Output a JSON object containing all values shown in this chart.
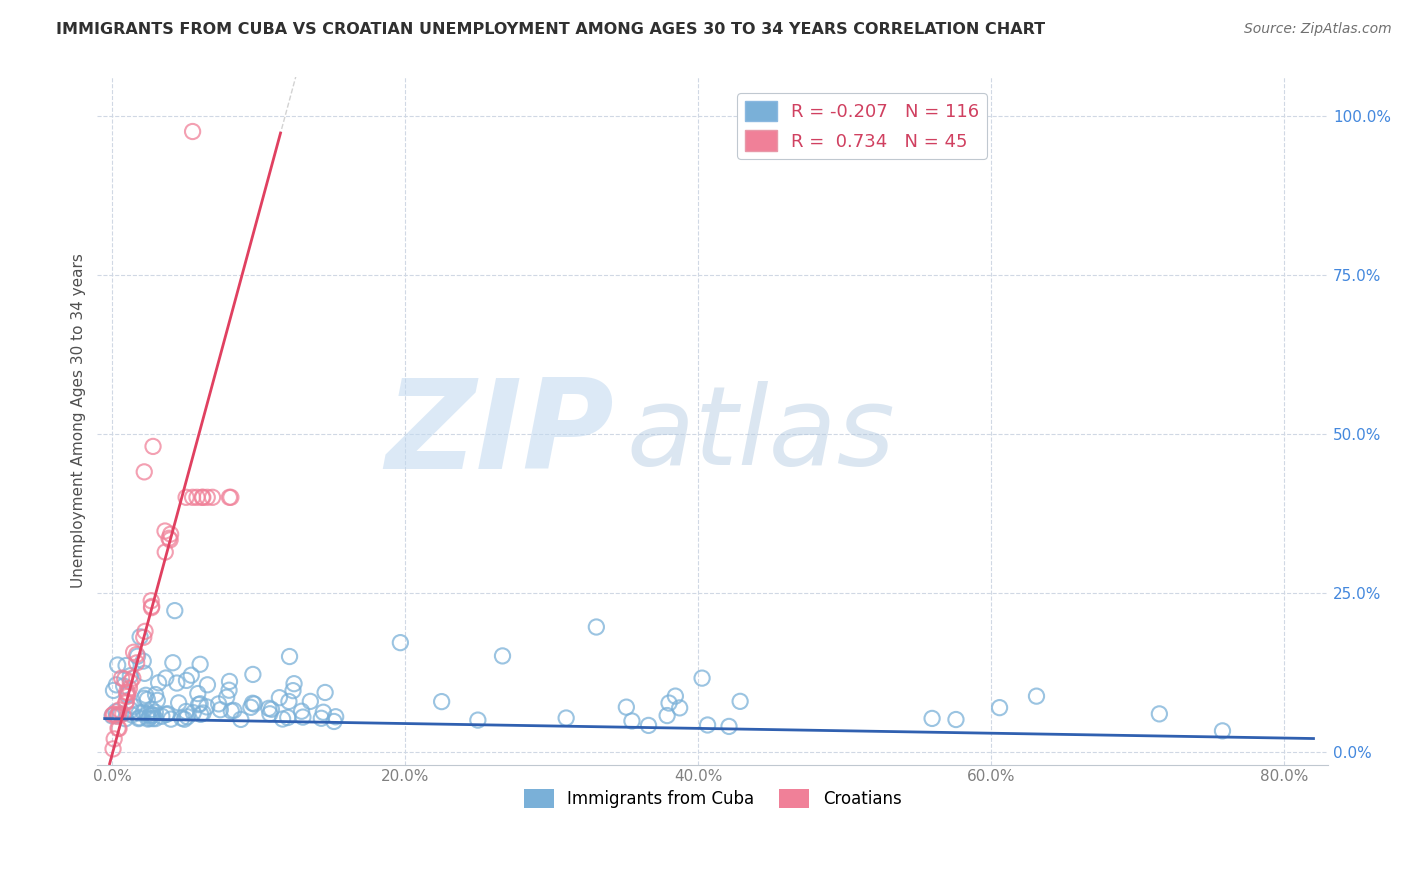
{
  "title": "IMMIGRANTS FROM CUBA VS CROATIAN UNEMPLOYMENT AMONG AGES 30 TO 34 YEARS CORRELATION CHART",
  "source": "Source: ZipAtlas.com",
  "xlabel_ticks": [
    "0.0%",
    "20.0%",
    "40.0%",
    "60.0%",
    "80.0%"
  ],
  "xlabel_vals": [
    0.0,
    0.2,
    0.4,
    0.6,
    0.8
  ],
  "ylabel_ticks": [
    "0.0%",
    "25.0%",
    "50.0%",
    "75.0%",
    "100.0%"
  ],
  "ylabel_vals": [
    0.0,
    0.25,
    0.5,
    0.75,
    1.0
  ],
  "xlim": [
    -0.01,
    0.83
  ],
  "ylim": [
    -0.02,
    1.06
  ],
  "blue_color": "#7ab0d8",
  "pink_color": "#f08098",
  "blue_line_color": "#3060b0",
  "pink_line_color": "#e04060",
  "pink_dash_color": "#e8a0b0",
  "watermark_zip": "ZIP",
  "watermark_atlas": "atlas",
  "watermark_color_zip": "#c0d8f0",
  "watermark_color_atlas": "#b0c8e0",
  "background_color": "#ffffff",
  "grid_color": "#d0d8e4",
  "title_color": "#303030",
  "axis_label_color": "#505050",
  "tick_color_x": "#808080",
  "tick_color_y": "#4488dd",
  "ylabel": "Unemployment Among Ages 30 to 34 years",
  "seed": 7,
  "blue_intercept": 0.052,
  "blue_slope": -0.038,
  "pink_intercept": -0.005,
  "pink_slope": 8.5
}
